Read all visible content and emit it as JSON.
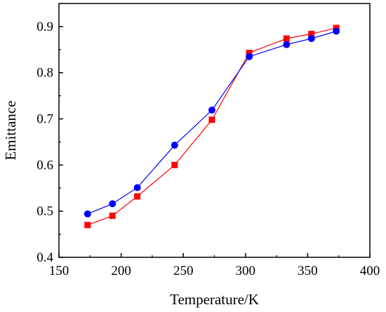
{
  "chart_data": {
    "type": "line",
    "xlabel": "Temperature/K",
    "ylabel": "Emittance",
    "xlim": [
      150,
      400
    ],
    "ylim": [
      0.4,
      0.95
    ],
    "xticks": [
      150,
      200,
      250,
      300,
      350,
      400
    ],
    "yticks": [
      0.4,
      0.5,
      0.6,
      0.7,
      0.8,
      0.9
    ],
    "grid": false,
    "series": [
      {
        "color": "#ff0000",
        "marker": "square",
        "x": [
          173,
          193,
          213,
          243,
          273,
          303,
          333,
          353,
          373
        ],
        "y": [
          0.47,
          0.49,
          0.532,
          0.6,
          0.698,
          0.843,
          0.874,
          0.884,
          0.897
        ]
      },
      {
        "color": "#0000ff",
        "marker": "circle",
        "x": [
          173,
          193,
          213,
          243,
          273,
          303,
          333,
          353,
          373
        ],
        "y": [
          0.494,
          0.516,
          0.551,
          0.643,
          0.719,
          0.835,
          0.861,
          0.874,
          0.89
        ]
      }
    ]
  }
}
